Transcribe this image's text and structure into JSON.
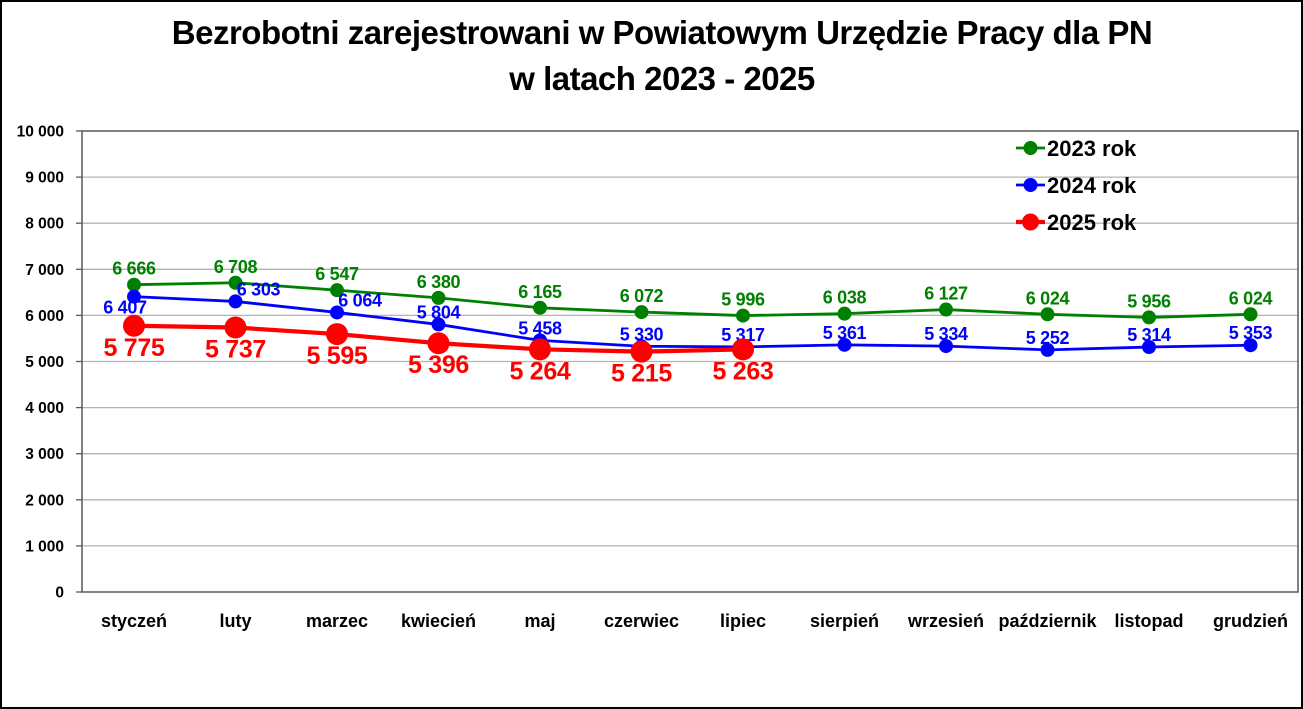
{
  "title": {
    "line1": "Bezrobotni zarejestrowani w Powiatowym Urzędzie Pracy dla PN",
    "line2": "w latach 2023 - 2025"
  },
  "colors": {
    "series_2023": "#008000",
    "series_2024": "#0000ff",
    "series_2025": "#ff0000",
    "gridline": "#b3b3b3",
    "plot_border": "#595959",
    "text": "#000000",
    "background": "#ffffff"
  },
  "chart_data": {
    "type": "line",
    "title": "Bezrobotni zarejestrowani w Powiatowym Urzędzie Pracy dla PN w latach 2023 - 2025",
    "categories": [
      "styczeń",
      "luty",
      "marzec",
      "kwiecień",
      "maj",
      "czerwiec",
      "lipiec",
      "sierpień",
      "wrzesień",
      "październik",
      "listopad",
      "grudzień"
    ],
    "series": [
      {
        "name": "2023 rok",
        "color": "#008000",
        "values": [
          6666,
          6708,
          6547,
          6380,
          6165,
          6072,
          5996,
          6038,
          6127,
          6024,
          5956,
          6024
        ],
        "line_width": 2.8,
        "marker_radius": 7,
        "label": {
          "position": "above",
          "dy": -10,
          "font_size": 18,
          "overrides": {}
        }
      },
      {
        "name": "2024 rok",
        "color": "#0000ff",
        "values": [
          6407,
          6303,
          6064,
          5804,
          5458,
          5330,
          5317,
          5361,
          5334,
          5252,
          5314,
          5353
        ],
        "line_width": 2.8,
        "marker_radius": 7,
        "label": {
          "position": "above",
          "dy": -6,
          "font_size": 18,
          "overrides": {
            "0": {
              "dx": -9,
              "dy": 17
            },
            "1": {
              "dx": 23
            },
            "2": {
              "dx": 23
            }
          }
        }
      },
      {
        "name": "2025 rok",
        "color": "#ff0000",
        "values": [
          5775,
          5737,
          5595,
          5396,
          5264,
          5215,
          5263
        ],
        "line_width": 4.2,
        "marker_radius": 11,
        "label": {
          "position": "below",
          "dy": 30,
          "font_size": 25,
          "overrides": {}
        }
      }
    ],
    "xlabel": "",
    "ylabel": "",
    "y_axis": {
      "min": 0,
      "max": 10000,
      "step": 1000
    },
    "grid": true,
    "legend_position": "top-right",
    "legend_labels": [
      "2023 rok",
      "2024 rok",
      "2025 rok"
    ]
  }
}
